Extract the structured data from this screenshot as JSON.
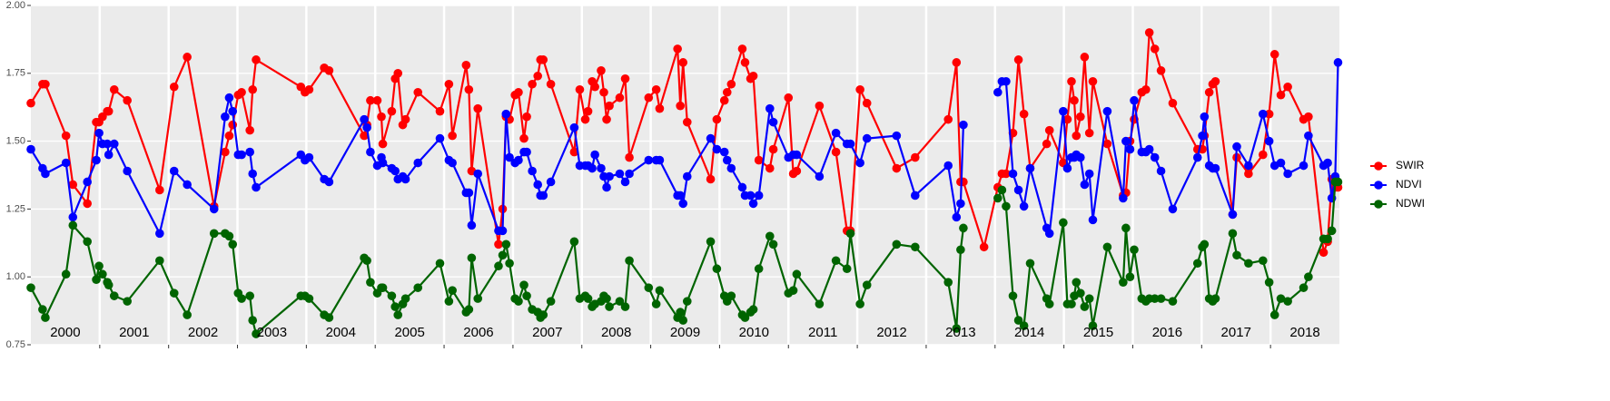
{
  "chart_data": {
    "type": "line",
    "x": [
      2000.0,
      2000.17,
      2000.21,
      2000.51,
      2000.61,
      2000.82,
      2000.95,
      2000.99,
      2001.04,
      2001.11,
      2001.13,
      2001.21,
      2001.4,
      2001.87,
      2002.08,
      2002.27,
      2002.66,
      2002.82,
      2002.88,
      2002.93,
      2003.01,
      2003.06,
      2003.18,
      2003.22,
      2003.27,
      2003.92,
      2003.98,
      2004.04,
      2004.26,
      2004.33,
      2004.84,
      2004.88,
      2004.93,
      2005.03,
      2005.09,
      2005.11,
      2005.24,
      2005.29,
      2005.33,
      2005.4,
      2005.44,
      2005.62,
      2005.94,
      2006.07,
      2006.12,
      2006.32,
      2006.36,
      2006.4,
      2006.49,
      2006.79,
      2006.85,
      2006.9,
      2006.95,
      2007.03,
      2007.08,
      2007.16,
      2007.2,
      2007.28,
      2007.36,
      2007.4,
      2007.44,
      2007.55,
      2007.89,
      2007.97,
      2008.05,
      2008.09,
      2008.15,
      2008.19,
      2008.28,
      2008.32,
      2008.36,
      2008.4,
      2008.55,
      2008.63,
      2008.69,
      2008.97,
      2009.08,
      2009.13,
      2009.39,
      2009.43,
      2009.47,
      2009.53,
      2009.87,
      2009.96,
      2010.07,
      2010.11,
      2010.17,
      2010.33,
      2010.37,
      2010.45,
      2010.49,
      2010.57,
      2010.73,
      2010.78,
      2011.0,
      2011.07,
      2011.12,
      2011.45,
      2011.69,
      2011.85,
      2011.9,
      2012.04,
      2012.14,
      2012.57,
      2012.84,
      2013.32,
      2013.44,
      2013.5,
      2013.54,
      2013.84,
      2014.04,
      2014.1,
      2014.16,
      2014.26,
      2014.34,
      2014.42,
      2014.51,
      2014.75,
      2014.79,
      2014.99,
      2015.05,
      2015.11,
      2015.15,
      2015.18,
      2015.24,
      2015.3,
      2015.37,
      2015.42,
      2015.63,
      2015.86,
      2015.9,
      2015.96,
      2016.02,
      2016.13,
      2016.19,
      2016.24,
      2016.32,
      2016.41,
      2016.58,
      2016.94,
      2017.01,
      2017.04,
      2017.11,
      2017.16,
      2017.2,
      2017.45,
      2017.51,
      2017.68,
      2017.89,
      2017.98,
      2018.06,
      2018.15,
      2018.25,
      2018.48,
      2018.55,
      2018.77,
      2018.83,
      2018.89,
      2018.94,
      2018.98
    ],
    "series": [
      {
        "name": "SWIR",
        "color": "#ff0000",
        "values": [
          1.64,
          1.71,
          1.71,
          1.52,
          1.34,
          1.27,
          1.57,
          1.57,
          1.59,
          1.61,
          1.61,
          1.69,
          1.65,
          1.32,
          1.7,
          1.81,
          1.26,
          1.46,
          1.52,
          1.56,
          1.67,
          1.68,
          1.54,
          1.69,
          1.8,
          1.7,
          1.68,
          1.69,
          1.77,
          1.76,
          1.52,
          1.56,
          1.65,
          1.65,
          1.59,
          1.49,
          1.61,
          1.73,
          1.75,
          1.56,
          1.58,
          1.68,
          1.61,
          1.71,
          1.52,
          1.78,
          1.69,
          1.39,
          1.62,
          1.12,
          1.25,
          1.59,
          1.58,
          1.67,
          1.68,
          1.51,
          1.59,
          1.71,
          1.74,
          1.8,
          1.8,
          1.71,
          1.46,
          1.69,
          1.58,
          1.61,
          1.72,
          1.7,
          1.76,
          1.68,
          1.58,
          1.63,
          1.66,
          1.73,
          1.44,
          1.66,
          1.69,
          1.62,
          1.84,
          1.63,
          1.79,
          1.57,
          1.36,
          1.58,
          1.65,
          1.68,
          1.71,
          1.84,
          1.79,
          1.73,
          1.74,
          1.43,
          1.4,
          1.47,
          1.66,
          1.38,
          1.39,
          1.63,
          1.46,
          1.17,
          1.17,
          1.69,
          1.64,
          1.4,
          1.44,
          1.58,
          1.79,
          1.35,
          1.35,
          1.11,
          1.33,
          1.38,
          1.38,
          1.53,
          1.8,
          1.6,
          1.4,
          1.49,
          1.54,
          1.42,
          1.58,
          1.72,
          1.65,
          1.52,
          1.59,
          1.81,
          1.53,
          1.72,
          1.49,
          1.3,
          1.31,
          1.5,
          1.58,
          1.68,
          1.69,
          1.9,
          1.84,
          1.76,
          1.64,
          1.47,
          1.47,
          1.52,
          1.68,
          1.71,
          1.72,
          1.23,
          1.44,
          1.38,
          1.45,
          1.6,
          1.82,
          1.67,
          1.7,
          1.58,
          1.59,
          1.09,
          1.13,
          1.36,
          1.33,
          1.33
        ]
      },
      {
        "name": "NDVI",
        "color": "#0000ff",
        "values": [
          1.47,
          1.4,
          1.38,
          1.42,
          1.22,
          1.35,
          1.43,
          1.53,
          1.49,
          1.49,
          1.45,
          1.49,
          1.39,
          1.16,
          1.39,
          1.34,
          1.25,
          1.59,
          1.66,
          1.61,
          1.45,
          1.45,
          1.46,
          1.38,
          1.33,
          1.45,
          1.43,
          1.44,
          1.36,
          1.35,
          1.58,
          1.55,
          1.46,
          1.41,
          1.44,
          1.42,
          1.4,
          1.39,
          1.36,
          1.37,
          1.36,
          1.42,
          1.51,
          1.43,
          1.42,
          1.31,
          1.31,
          1.19,
          1.38,
          1.17,
          1.17,
          1.6,
          1.44,
          1.42,
          1.43,
          1.46,
          1.46,
          1.39,
          1.34,
          1.3,
          1.3,
          1.35,
          1.55,
          1.41,
          1.41,
          1.41,
          1.4,
          1.45,
          1.4,
          1.37,
          1.33,
          1.37,
          1.38,
          1.35,
          1.38,
          1.43,
          1.43,
          1.43,
          1.3,
          1.3,
          1.27,
          1.37,
          1.51,
          1.47,
          1.46,
          1.43,
          1.4,
          1.33,
          1.3,
          1.3,
          1.27,
          1.3,
          1.62,
          1.57,
          1.44,
          1.45,
          1.45,
          1.37,
          1.53,
          1.49,
          1.49,
          1.42,
          1.51,
          1.52,
          1.3,
          1.41,
          1.22,
          1.27,
          1.56,
          null,
          1.68,
          1.72,
          1.72,
          1.38,
          1.32,
          1.26,
          1.4,
          1.18,
          1.16,
          1.61,
          1.4,
          1.44,
          1.44,
          1.45,
          1.44,
          1.34,
          1.38,
          1.21,
          1.61,
          1.29,
          1.5,
          1.47,
          1.65,
          1.46,
          1.46,
          1.47,
          1.44,
          1.39,
          1.25,
          1.44,
          1.52,
          1.59,
          1.41,
          1.4,
          1.4,
          1.23,
          1.48,
          1.41,
          1.6,
          1.5,
          1.41,
          1.42,
          1.38,
          1.41,
          1.52,
          1.41,
          1.42,
          1.29,
          1.37,
          1.79
        ]
      },
      {
        "name": "NDWI",
        "color": "#006400",
        "values": [
          0.96,
          0.88,
          0.85,
          1.01,
          1.19,
          1.13,
          0.99,
          1.04,
          1.01,
          0.98,
          0.97,
          0.93,
          0.91,
          1.06,
          0.94,
          0.86,
          1.16,
          1.16,
          1.15,
          1.12,
          0.94,
          0.92,
          0.93,
          0.84,
          0.79,
          0.93,
          0.93,
          0.92,
          0.86,
          0.85,
          1.07,
          1.06,
          0.98,
          0.94,
          0.96,
          0.96,
          0.93,
          0.89,
          0.86,
          0.9,
          0.92,
          0.96,
          1.05,
          0.91,
          0.95,
          0.87,
          0.88,
          1.07,
          0.92,
          1.04,
          1.08,
          1.12,
          1.05,
          0.92,
          0.91,
          0.97,
          0.93,
          0.88,
          0.87,
          0.85,
          0.86,
          0.91,
          1.13,
          0.92,
          0.93,
          0.92,
          0.89,
          0.9,
          0.91,
          0.93,
          0.92,
          0.89,
          0.91,
          0.89,
          1.06,
          0.96,
          0.9,
          0.95,
          0.85,
          0.87,
          0.84,
          0.91,
          1.13,
          1.03,
          0.93,
          0.91,
          0.93,
          0.86,
          0.85,
          0.87,
          0.88,
          1.03,
          1.15,
          1.12,
          0.94,
          0.95,
          1.01,
          0.9,
          1.06,
          1.03,
          1.16,
          0.9,
          0.97,
          1.12,
          1.11,
          0.98,
          0.81,
          1.1,
          1.18,
          null,
          1.29,
          1.32,
          1.26,
          0.93,
          0.84,
          0.82,
          1.05,
          0.92,
          0.9,
          1.2,
          0.9,
          0.9,
          0.93,
          0.98,
          0.94,
          0.89,
          0.92,
          0.82,
          1.11,
          0.98,
          1.18,
          1.0,
          1.1,
          0.92,
          0.91,
          0.92,
          0.92,
          0.92,
          0.91,
          1.05,
          1.11,
          1.12,
          0.92,
          0.91,
          0.92,
          1.16,
          1.08,
          1.05,
          1.06,
          0.98,
          0.86,
          0.92,
          0.91,
          0.96,
          1.0,
          1.14,
          1.14,
          1.17,
          1.35,
          1.35
        ]
      }
    ],
    "xlim": [
      2000,
      2019
    ],
    "xticks": [
      {
        "value": 2000.5,
        "label": "2000"
      },
      {
        "value": 2001.5,
        "label": "2001"
      },
      {
        "value": 2002.5,
        "label": "2002"
      },
      {
        "value": 2003.5,
        "label": "2003"
      },
      {
        "value": 2004.5,
        "label": "2004"
      },
      {
        "value": 2005.5,
        "label": "2005"
      },
      {
        "value": 2006.5,
        "label": "2006"
      },
      {
        "value": 2007.5,
        "label": "2007"
      },
      {
        "value": 2008.5,
        "label": "2008"
      },
      {
        "value": 2009.5,
        "label": "2009"
      },
      {
        "value": 2010.5,
        "label": "2010"
      },
      {
        "value": 2011.5,
        "label": "2011"
      },
      {
        "value": 2012.5,
        "label": "2012"
      },
      {
        "value": 2013.5,
        "label": "2013"
      },
      {
        "value": 2014.5,
        "label": "2014"
      },
      {
        "value": 2015.5,
        "label": "2015"
      },
      {
        "value": 2016.5,
        "label": "2016"
      },
      {
        "value": 2017.5,
        "label": "2017"
      },
      {
        "value": 2018.5,
        "label": "2018"
      }
    ],
    "xgrid": [
      2001,
      2002,
      2003,
      2004,
      2005,
      2006,
      2007,
      2008,
      2009,
      2010,
      2011,
      2012,
      2013,
      2014,
      2015,
      2016,
      2017,
      2018
    ],
    "ylim": [
      0.75,
      2.0
    ],
    "yticks": [
      {
        "value": 0.75,
        "label": "0.75"
      },
      {
        "value": 1.0,
        "label": "1.00"
      },
      {
        "value": 1.25,
        "label": "1.25"
      },
      {
        "value": 1.5,
        "label": "1.50"
      },
      {
        "value": 1.75,
        "label": "1.75"
      },
      {
        "value": 2.0,
        "label": "2.00"
      }
    ],
    "grid": true,
    "legend": "right"
  }
}
